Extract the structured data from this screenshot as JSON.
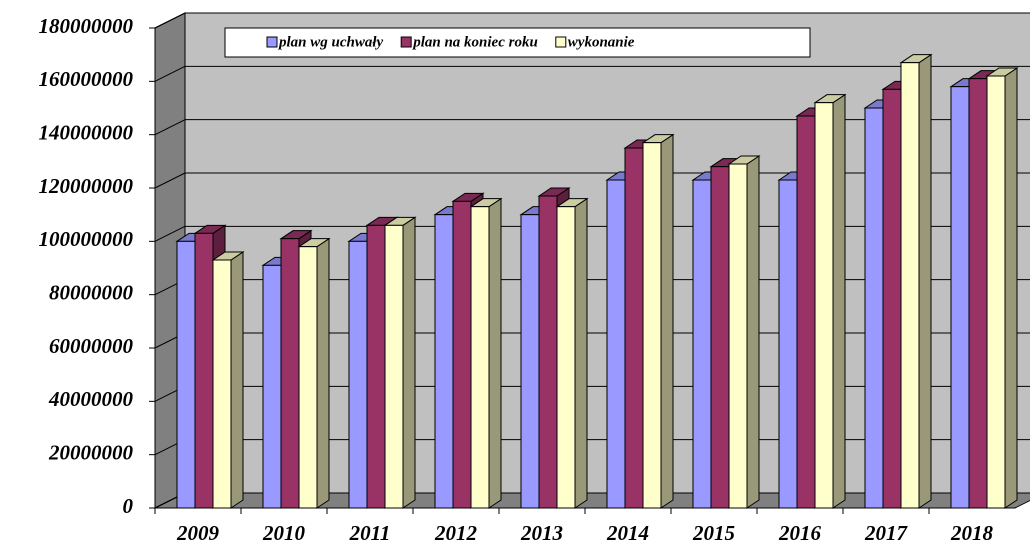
{
  "chart_data": {
    "type": "bar3d",
    "categories": [
      "2009",
      "2010",
      "2011",
      "2012",
      "2013",
      "2014",
      "2015",
      "2016",
      "2017",
      "2018"
    ],
    "series": [
      {
        "name": "plan wg uchwały",
        "color": "#9999ff",
        "values": [
          100000000,
          91000000,
          100000000,
          110000000,
          110000000,
          123000000,
          123000000,
          123000000,
          150000000,
          158000000
        ]
      },
      {
        "name": "plan na koniec roku",
        "color": "#993366",
        "values": [
          103000000,
          101000000,
          106000000,
          115000000,
          117000000,
          135000000,
          128000000,
          147000000,
          157000000,
          161000000
        ]
      },
      {
        "name": "wykonanie",
        "color": "#ffffcc",
        "values": [
          93000000,
          98000000,
          106000000,
          113000000,
          113000000,
          137000000,
          129000000,
          152000000,
          167000000,
          162000000
        ]
      }
    ],
    "ylim": [
      0,
      180000000
    ],
    "yticks": [
      0,
      20000000,
      40000000,
      60000000,
      80000000,
      100000000,
      120000000,
      140000000,
      160000000,
      180000000
    ],
    "grid": true,
    "legend": "top"
  }
}
